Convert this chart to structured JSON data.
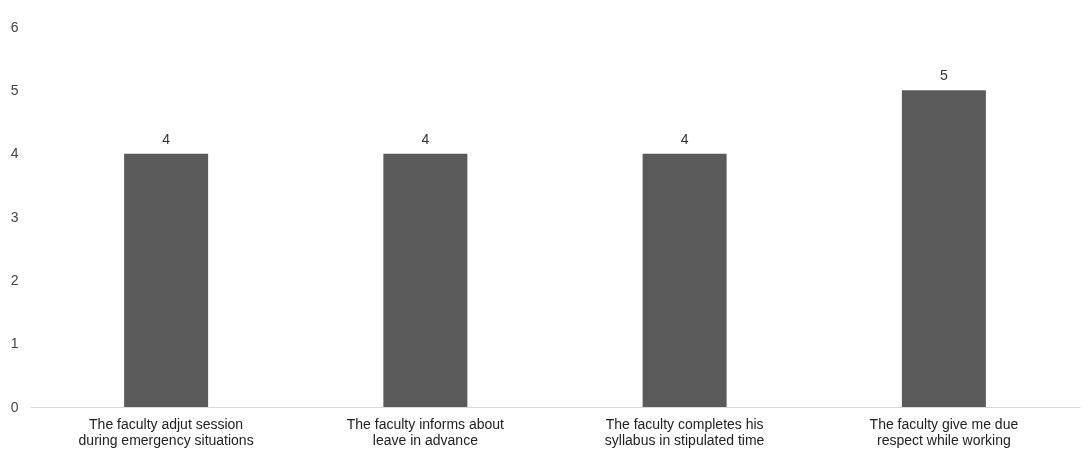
{
  "chart_data": {
    "type": "bar",
    "categories": [
      "The faculty adjut session during emergency situations",
      "The faculty informs about leave in advance",
      "The faculty completes his syllabus in stipulated time",
      "The faculty give me due respect while working"
    ],
    "values": [
      4,
      4,
      4,
      5
    ],
    "color": "#5a5a5a",
    "ylim": [
      0,
      6
    ],
    "yticks": [
      0,
      1,
      2,
      3,
      4,
      5,
      6
    ],
    "grid": false,
    "data_labels": true
  }
}
